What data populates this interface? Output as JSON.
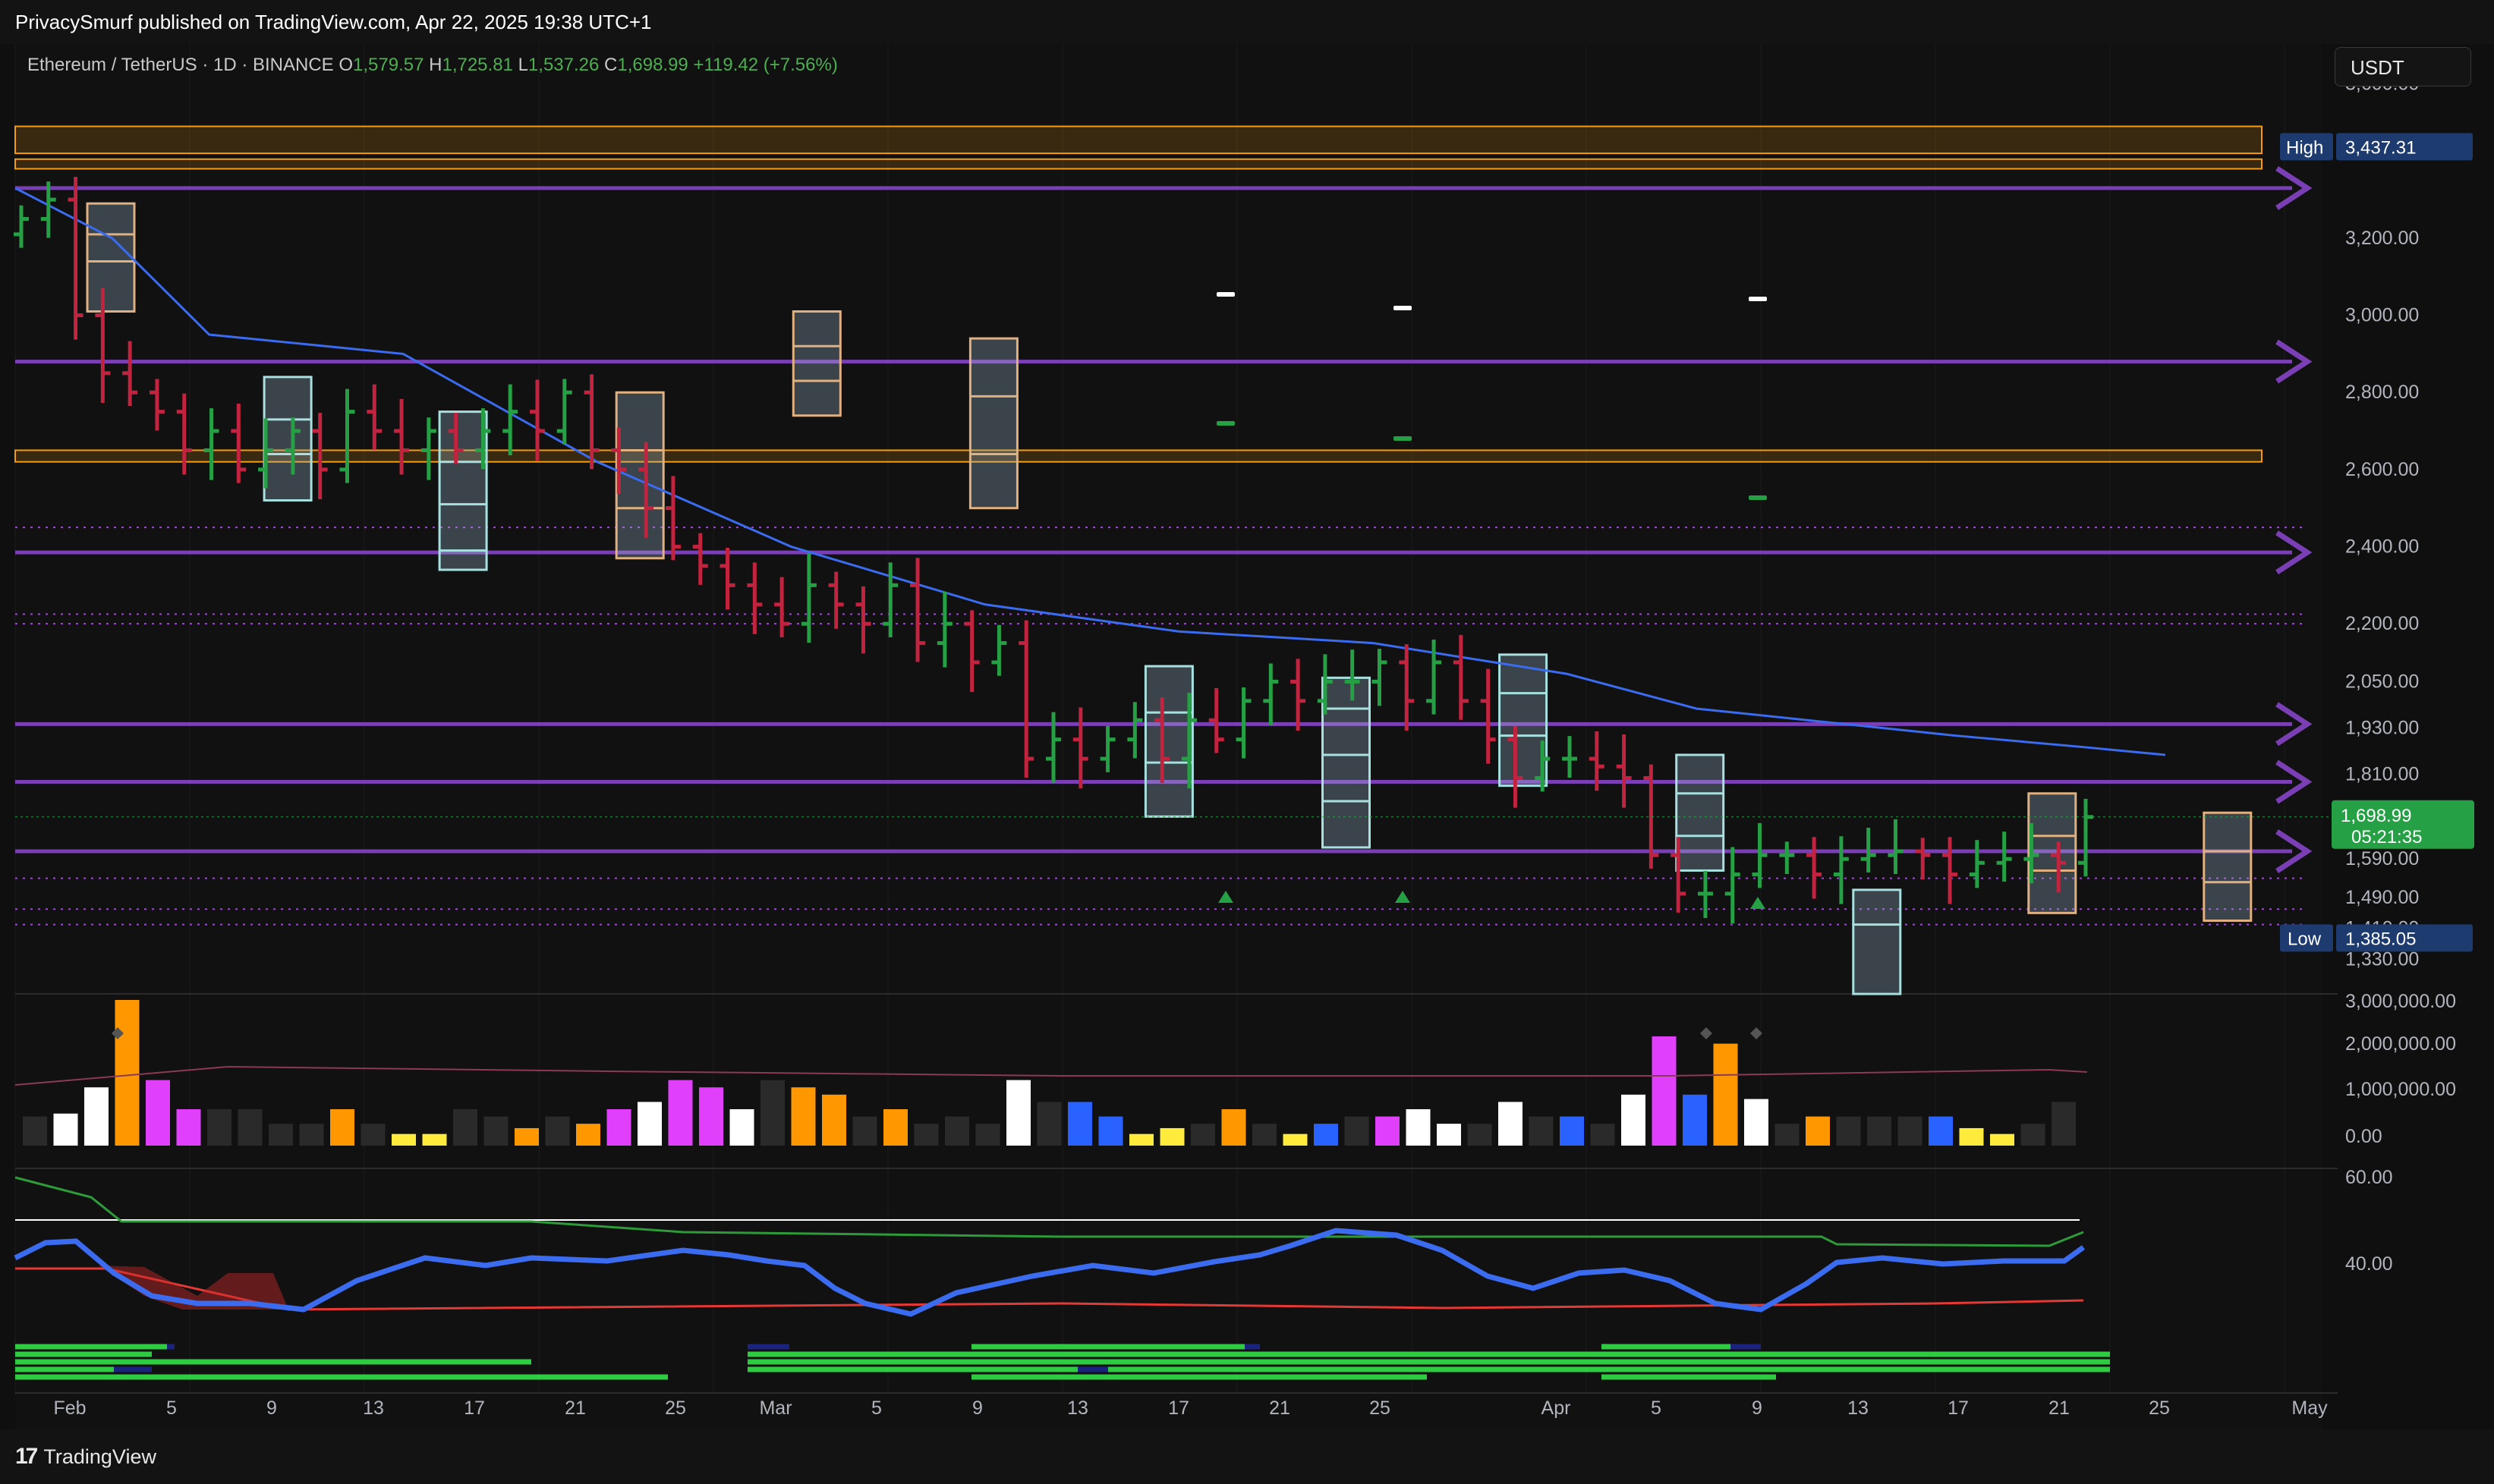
{
  "header": {
    "publisher_text": "PrivacySmurf published on TradingView.com, Apr 22, 2025 19:38 UTC+1"
  },
  "legend": {
    "symbol": "Ethereum / TetherUS · 1D · BINANCE",
    "o_label": "O",
    "o_value": "1,579.57",
    "h_label": "H",
    "h_value": "1,725.81",
    "l_label": "L",
    "l_value": "1,537.26",
    "c_label": "C",
    "c_value": "1,698.99",
    "change": "+119.42 (+7.56%)"
  },
  "toolbar": {
    "currency": "USDT"
  },
  "footer": {
    "brand": "TradingView"
  },
  "colors": {
    "up": "#26a045",
    "down": "#c2233f",
    "ema": "#3b6cf0",
    "level": "#7b3fb5",
    "zone": "#f39c12",
    "vol_orange": "#ff9800",
    "vol_magenta": "#e040fb",
    "vol_blue": "#2962ff",
    "vol_yellow": "#ffeb3b",
    "vol_white": "#ffffff",
    "vol_gray": "#2a2a2a"
  },
  "chart_data": [
    {
      "type": "ohlc",
      "title": "Ethereum / TetherUS · 1D · BINANCE",
      "ylim": [
        1250,
        3680
      ],
      "y_ticks": [
        "3,600.00",
        "3,200.00",
        "3,000.00",
        "2,800.00",
        "2,600.00",
        "2,400.00",
        "2,200.00",
        "2,050.00",
        "1,930.00",
        "1,810.00",
        "1,590.00",
        "1,490.00",
        "1,410.00",
        "1,330.00"
      ],
      "x_labels": [
        "Feb",
        "5",
        "9",
        "13",
        "17",
        "21",
        "25",
        "Mar",
        "5",
        "9",
        "13",
        "17",
        "21",
        "25",
        "Apr",
        "5",
        "9",
        "13",
        "17",
        "21",
        "25",
        "May"
      ],
      "high_label": {
        "text": "High",
        "value": "3,437.31"
      },
      "low_label": {
        "text": "Low",
        "value": "1,385.05"
      },
      "last_price": {
        "value": "1,698.99",
        "countdown": "05:21:35"
      },
      "close": [
        3250,
        3300,
        3000,
        2850,
        2800,
        2750,
        2650,
        2700,
        2600,
        2650,
        2700,
        2600,
        2750,
        2700,
        2650,
        2700,
        2650,
        2700,
        2750,
        2700,
        2800,
        2650,
        2600,
        2500,
        2400,
        2350,
        2300,
        2250,
        2200,
        2300,
        2250,
        2200,
        2300,
        2150,
        2200,
        2100,
        2150,
        1850,
        1900,
        1850,
        1900,
        1950,
        1850,
        1950,
        1900,
        2000,
        2050,
        2000,
        2050,
        2050,
        2100,
        2000,
        2100,
        2000,
        1900,
        1800,
        1850,
        1850,
        1830,
        1800,
        1600,
        1500,
        1500,
        1550,
        1600,
        1600,
        1550,
        1590,
        1600,
        1610,
        1600,
        1550,
        1580,
        1590,
        1600,
        1580,
        1699
      ],
      "ema_stops": [
        [
          0,
          3330
        ],
        [
          6,
          3200
        ],
        [
          12,
          2950
        ],
        [
          24,
          2900
        ],
        [
          36,
          2620
        ],
        [
          48,
          2400
        ],
        [
          60,
          2250
        ],
        [
          72,
          2180
        ],
        [
          84,
          2150
        ],
        [
          96,
          2070
        ],
        [
          104,
          1980
        ],
        [
          120,
          1910
        ],
        [
          128,
          1880
        ],
        [
          133,
          1860
        ]
      ],
      "levels": [
        3330,
        2880,
        2385,
        1940,
        1790,
        1610
      ],
      "dotted_levels": [
        2450,
        2225,
        2200,
        1540,
        1460,
        1420
      ],
      "zones": [
        [
          3490,
          3420
        ],
        [
          3405,
          3380
        ],
        [
          2650,
          2620
        ]
      ],
      "boxes": [
        {
          "x": 60,
          "top": 3290,
          "bottom": 3010,
          "dividers": [
            3210,
            3140
          ],
          "style": "orange"
        },
        {
          "x": 171,
          "top": 2840,
          "bottom": 2520,
          "dividers": [
            2730,
            2640
          ],
          "style": "teal"
        },
        {
          "x": 281,
          "top": 2750,
          "bottom": 2340,
          "dividers": [
            2620,
            2510,
            2390
          ],
          "style": "teal"
        },
        {
          "x": 392,
          "top": 2800,
          "bottom": 2370,
          "dividers": [
            2650,
            2500
          ],
          "style": "orange"
        },
        {
          "x": 503,
          "top": 3010,
          "bottom": 2740,
          "dividers": [
            2920,
            2830
          ],
          "style": "orange"
        },
        {
          "x": 614,
          "top": 2940,
          "bottom": 2500,
          "dividers": [
            2790,
            2640
          ],
          "style": "orange"
        },
        {
          "x": 724,
          "top": 2090,
          "bottom": 1700,
          "dividers": [
            1970,
            1840
          ],
          "style": "teal"
        },
        {
          "x": 835,
          "top": 2060,
          "bottom": 1620,
          "dividers": [
            1980,
            1860,
            1740
          ],
          "style": "teal"
        },
        {
          "x": 946,
          "top": 2120,
          "bottom": 1780,
          "dividers": [
            2020,
            1910
          ],
          "style": "teal"
        },
        {
          "x": 1057,
          "top": 1860,
          "bottom": 1560,
          "dividers": [
            1760,
            1650
          ],
          "style": "teal"
        },
        {
          "x": 1168,
          "top": 1510,
          "bottom": 1240,
          "dividers": [
            1420
          ],
          "style": "teal"
        },
        {
          "x": 1278,
          "top": 1760,
          "bottom": 1450,
          "dividers": [
            1650,
            1560
          ],
          "style": "orange"
        },
        {
          "x": 1388,
          "top": 1710,
          "bottom": 1430,
          "dividers": [
            1610,
            1530
          ],
          "style": "orange"
        }
      ],
      "volume_ylim": [
        0,
        3000000
      ],
      "volume_ticks": [
        "3,000,000.00",
        "2,000,000.00",
        "1,000,000.00",
        "0.00"
      ],
      "rsi_ticks": [
        "60.00",
        "40.00"
      ]
    }
  ]
}
